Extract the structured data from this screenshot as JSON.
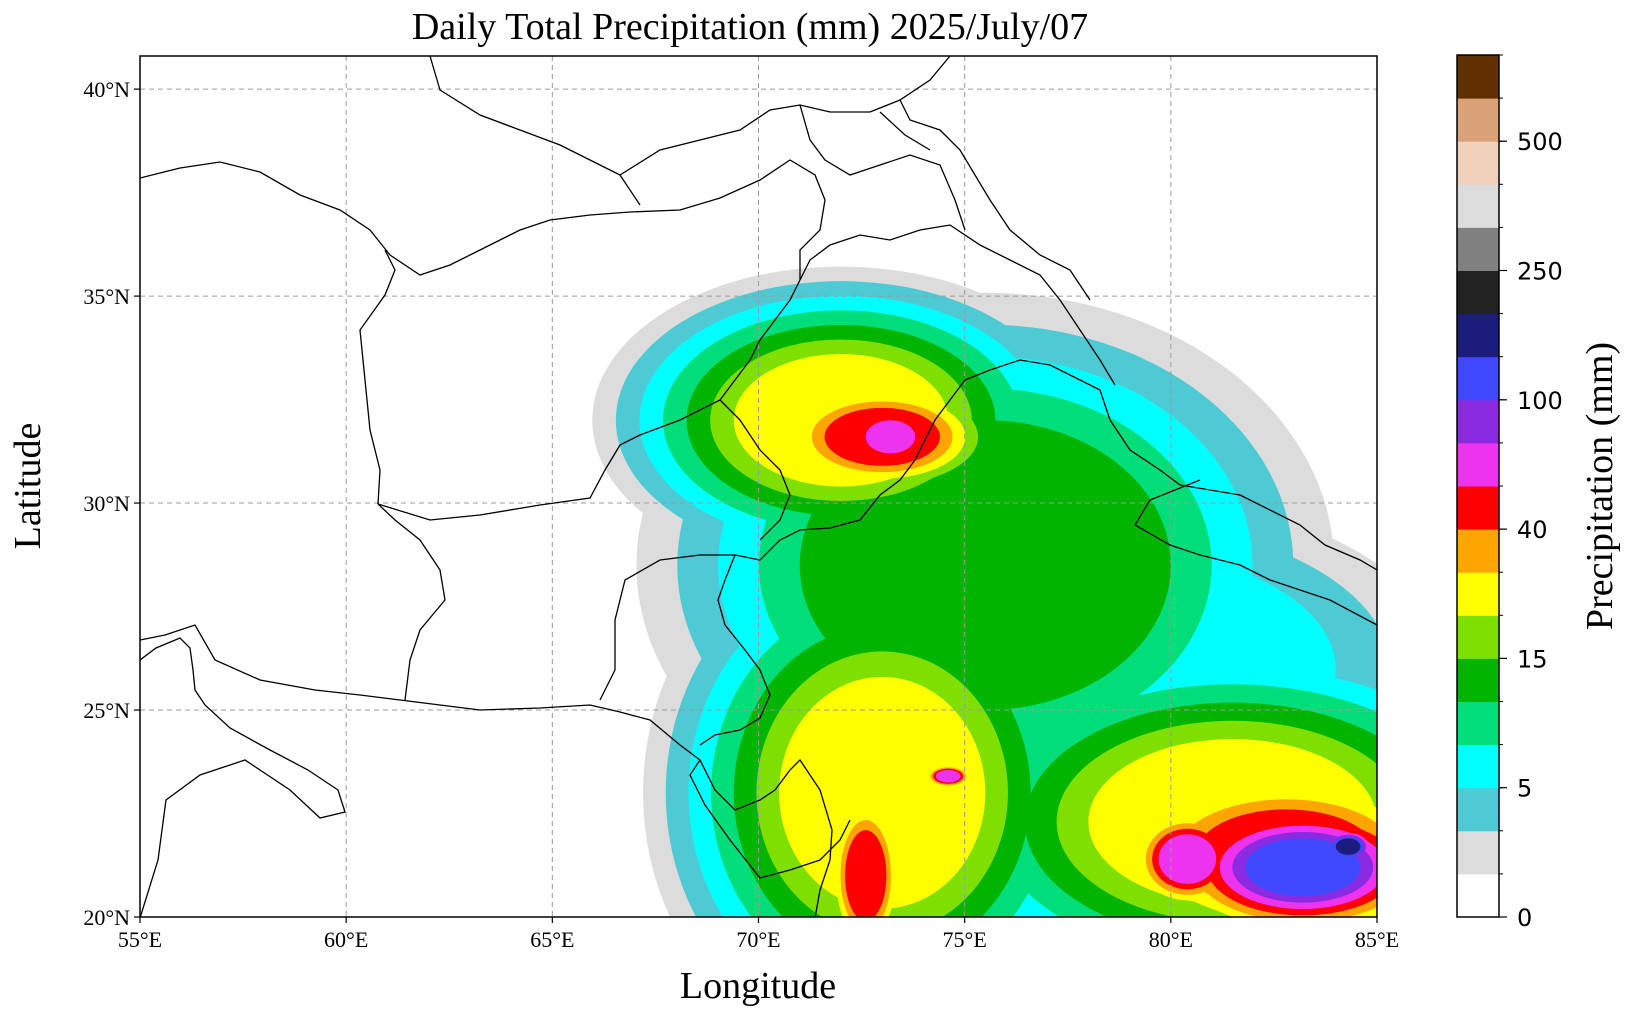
{
  "title": "Daily Total Precipitation (mm)  2025/July/07",
  "xlabel": "Longitude",
  "ylabel": "Latitude",
  "x_ticks": [
    {
      "value": 55,
      "label": "55°E"
    },
    {
      "value": 60,
      "label": "60°E"
    },
    {
      "value": 65,
      "label": "65°E"
    },
    {
      "value": 70,
      "label": "70°E"
    },
    {
      "value": 75,
      "label": "75°E"
    },
    {
      "value": 80,
      "label": "80°E"
    },
    {
      "value": 85,
      "label": "85°E"
    }
  ],
  "y_ticks": [
    {
      "value": 20,
      "label": "20°N"
    },
    {
      "value": 25,
      "label": "25°N"
    },
    {
      "value": 30,
      "label": "30°N"
    },
    {
      "value": 35,
      "label": "35°N"
    },
    {
      "value": 40,
      "label": "40°N"
    }
  ],
  "extent": {
    "lon": [
      55,
      85
    ],
    "lat": [
      20,
      40.8
    ]
  },
  "colorbar": {
    "label": "Precipitation (mm)",
    "bins": [
      {
        "color": "#ffffff"
      },
      {
        "color": "#dcdcdc"
      },
      {
        "color": "#4ecad5"
      },
      {
        "color": "#00ffff"
      },
      {
        "color": "#00de7a"
      },
      {
        "color": "#00b400"
      },
      {
        "color": "#7fe000"
      },
      {
        "color": "#ffff00"
      },
      {
        "color": "#ffa500"
      },
      {
        "color": "#ff0000"
      },
      {
        "color": "#ee33ee"
      },
      {
        "color": "#8a2be2"
      },
      {
        "color": "#3f48ff"
      },
      {
        "color": "#1c1c7c"
      },
      {
        "color": "#222222"
      },
      {
        "color": "#808080"
      },
      {
        "color": "#dcdcdc"
      },
      {
        "color": "#f0d2bc"
      },
      {
        "color": "#d9a278"
      },
      {
        "color": "#603000"
      }
    ],
    "labeled_ticks": [
      {
        "bin": 0,
        "label": "0"
      },
      {
        "bin": 3,
        "label": "5"
      },
      {
        "bin": 6,
        "label": "15"
      },
      {
        "bin": 9,
        "label": "40"
      },
      {
        "bin": 12,
        "label": "100"
      },
      {
        "bin": 15,
        "label": "250"
      },
      {
        "bin": 18,
        "label": "500"
      }
    ]
  },
  "chart_data": {
    "type": "heatmap",
    "title": "Daily Total Precipitation (mm)  2025/July/07",
    "xlabel": "Longitude",
    "ylabel": "Latitude",
    "xlim": [
      55,
      85
    ],
    "ylim": [
      20,
      40.8
    ],
    "grid": true,
    "field_name": "Precipitation (mm)",
    "regions": [
      {
        "lon": 72.0,
        "lat": 32.0,
        "rx": 2.6,
        "ry": 1.6,
        "level": 7
      },
      {
        "lon": 73.0,
        "lat": 31.6,
        "rx": 1.4,
        "ry": 0.7,
        "level": 9
      },
      {
        "lon": 73.2,
        "lat": 31.6,
        "rx": 0.6,
        "ry": 0.4,
        "level": 10
      },
      {
        "lon": 75.5,
        "lat": 28.5,
        "rx": 4.5,
        "ry": 3.5,
        "level": 5
      },
      {
        "lon": 78.0,
        "lat": 26.0,
        "rx": 6.0,
        "ry": 3.0,
        "level": 3
      },
      {
        "lon": 73.0,
        "lat": 23.0,
        "rx": 2.5,
        "ry": 2.8,
        "level": 7
      },
      {
        "lon": 72.6,
        "lat": 21.0,
        "rx": 0.5,
        "ry": 1.1,
        "level": 9
      },
      {
        "lon": 81.5,
        "lat": 22.3,
        "rx": 3.5,
        "ry": 2.0,
        "level": 7
      },
      {
        "lon": 82.8,
        "lat": 21.5,
        "rx": 2.2,
        "ry": 1.1,
        "level": 9
      },
      {
        "lon": 80.4,
        "lat": 21.4,
        "rx": 0.7,
        "ry": 0.6,
        "level": 10
      },
      {
        "lon": 83.2,
        "lat": 21.2,
        "rx": 1.4,
        "ry": 0.7,
        "level": 12
      },
      {
        "lon": 84.3,
        "lat": 21.7,
        "rx": 0.3,
        "ry": 0.2,
        "level": 13
      },
      {
        "lon": 74.6,
        "lat": 23.4,
        "rx": 0.3,
        "ry": 0.15,
        "level": 10
      }
    ]
  }
}
